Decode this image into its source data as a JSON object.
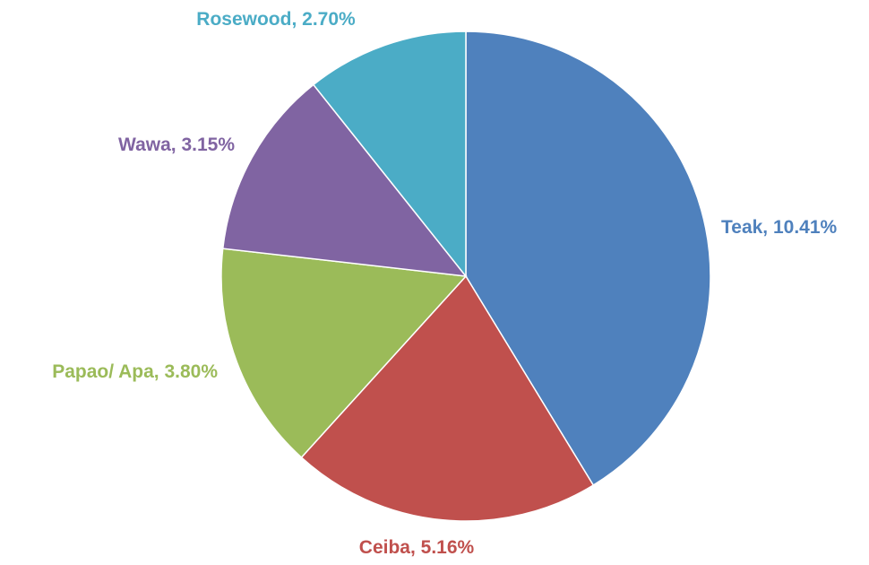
{
  "chart_data": {
    "type": "pie",
    "title": "",
    "series": [
      {
        "slices": [
          {
            "name": "Teak",
            "value": 10.41,
            "label": "Teak, 10.41%",
            "color": "#4F81BD"
          },
          {
            "name": "Ceiba",
            "value": 5.16,
            "label": "Ceiba, 5.16%",
            "color": "#C0504D"
          },
          {
            "name": "Papao/ Apa",
            "value": 3.8,
            "label": "Papao/ Apa, 3.80%",
            "color": "#9BBB59"
          },
          {
            "name": "Wawa",
            "value": 3.15,
            "label": "Wawa, 3.15%",
            "color": "#8064A2"
          },
          {
            "name": "Rosewood",
            "value": 2.7,
            "label": "Rosewood, 2.70%",
            "color": "#4BACC6"
          }
        ]
      }
    ],
    "legend": "none",
    "start_angle": "12 o'clock",
    "direction": "clockwise"
  }
}
